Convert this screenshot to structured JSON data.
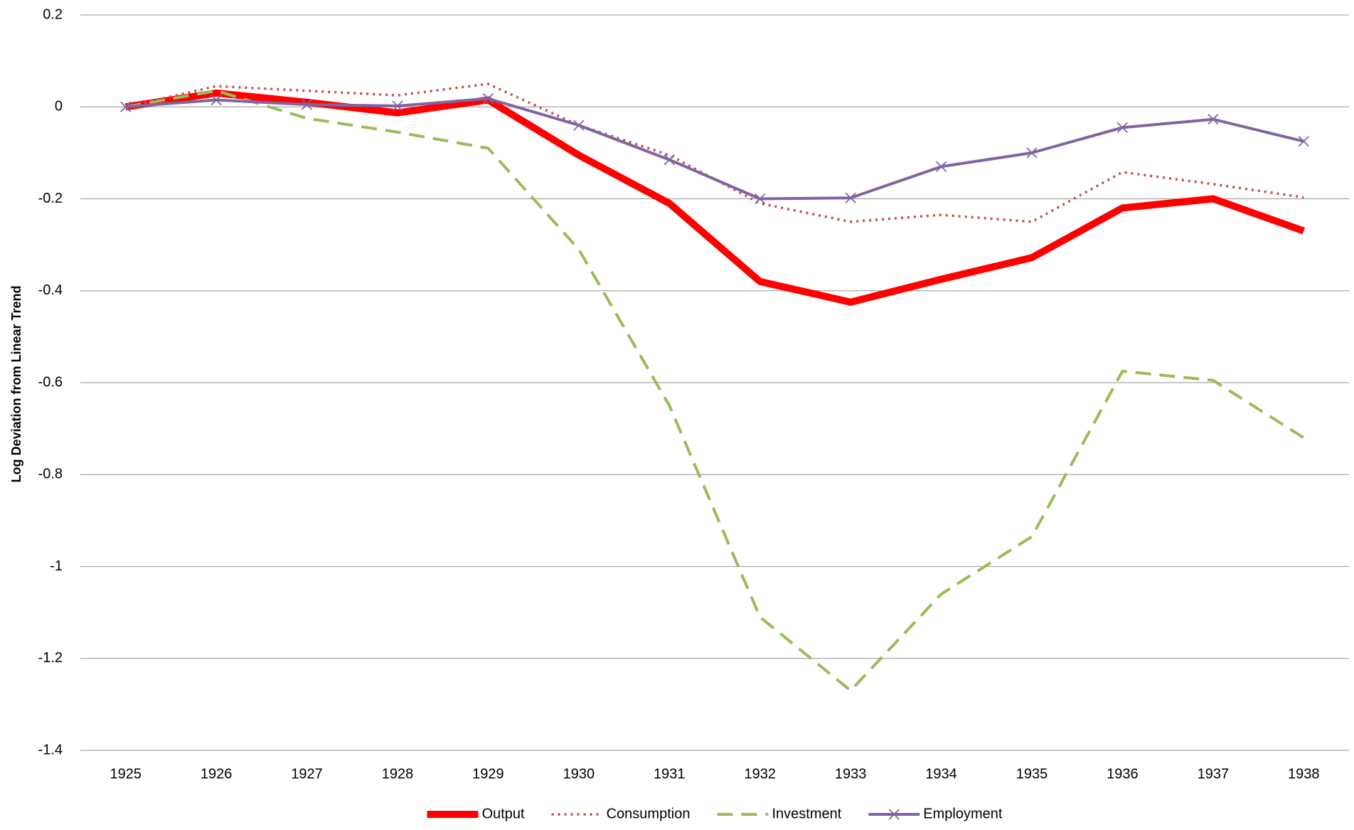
{
  "chart_data": {
    "type": "line",
    "y_label": "Log Deviation from Linear Trend",
    "categories": [
      "1925",
      "1926",
      "1927",
      "1928",
      "1929",
      "1930",
      "1931",
      "1932",
      "1933",
      "1934",
      "1935",
      "1936",
      "1937",
      "1938"
    ],
    "series": [
      {
        "name": "Output",
        "color": "#ff0000",
        "line_style": "thick",
        "values": [
          0,
          0.03,
          0.01,
          -0.013,
          0.015,
          -0.105,
          -0.21,
          -0.38,
          -0.425,
          -0.375,
          -0.328,
          -0.22,
          -0.2,
          -0.27
        ]
      },
      {
        "name": "Consumption",
        "color": "#c0504d",
        "line_style": "dotted",
        "values": [
          0,
          0.045,
          0.035,
          0.025,
          0.05,
          -0.04,
          -0.105,
          -0.21,
          -0.25,
          -0.235,
          -0.25,
          -0.142,
          -0.168,
          -0.197
        ]
      },
      {
        "name": "Investment",
        "color": "#9bbb59",
        "line_style": "dashed",
        "values": [
          0,
          0.035,
          -0.025,
          -0.055,
          -0.09,
          -0.31,
          -0.65,
          -1.11,
          -1.27,
          -1.06,
          -0.935,
          -0.575,
          -0.595,
          -0.72
        ]
      },
      {
        "name": "Employment",
        "color": "#8064a2",
        "line_style": "solid",
        "marker": "x",
        "values": [
          0,
          0.015,
          0.005,
          0.002,
          0.018,
          -0.04,
          -0.115,
          -0.2,
          -0.198,
          -0.13,
          -0.1,
          -0.045,
          -0.027,
          -0.075
        ]
      }
    ],
    "ylim": [
      -1.4,
      0.2
    ],
    "yticks": [
      0.2,
      0,
      -0.2,
      -0.4,
      -0.6,
      -0.8,
      -1,
      -1.2,
      -1.4
    ],
    "grid": true,
    "legend": "bottom"
  }
}
